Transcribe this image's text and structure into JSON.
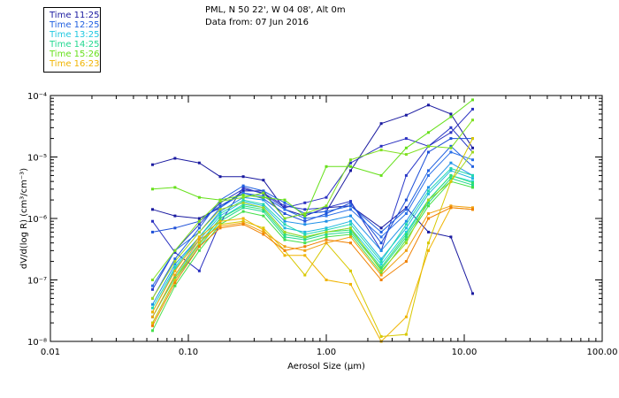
{
  "header": {
    "line1": "PML, N 50 22', W 04 08', Alt 0m",
    "line2": "Data from: 07 Jun 2016"
  },
  "legend": [
    {
      "label": "Time 11:25",
      "color": "#1a1aa0"
    },
    {
      "label": "Time 12:25",
      "color": "#1f5fe0"
    },
    {
      "label": "Time 13:25",
      "color": "#20c8e0"
    },
    {
      "label": "Time 14:25",
      "color": "#22d890"
    },
    {
      "label": "Time 15:26",
      "color": "#66e01a"
    },
    {
      "label": "Time 16:23",
      "color": "#f0b400"
    }
  ],
  "chart_data": {
    "type": "line",
    "xlabel": "Aerosol Size (μm)",
    "ylabel": "dV/d(log R) (cm³/cm⁻³)",
    "xscale": "log",
    "yscale": "log",
    "xlim": [
      0.01,
      100
    ],
    "ylim": [
      1e-08,
      0.0001
    ],
    "x_ticks": [
      "0.01",
      "0.10",
      "1.00",
      "10.00",
      "100.00"
    ],
    "y_ticks": [
      "10⁻⁸",
      "10⁻⁷",
      "10⁻⁶",
      "10⁻⁵",
      "10⁻⁴"
    ],
    "x": [
      0.055,
      0.08,
      0.12,
      0.17,
      0.25,
      0.35,
      0.5,
      0.7,
      1.0,
      1.5,
      2.5,
      3.8,
      5.5,
      8.0,
      11.5
    ],
    "series": [
      {
        "color": "#1a1aa0",
        "values": [
          7.5e-06,
          9.5e-06,
          8e-06,
          4.8e-06,
          4.8e-06,
          4.2e-06,
          1.4e-06,
          1.1e-06,
          1.5e-06,
          1.6e-06,
          7e-07,
          1.5e-06,
          6e-07,
          5e-07,
          6e-08
        ]
      },
      {
        "color": "#1a1aa0",
        "values": [
          1.4e-06,
          1.1e-06,
          1e-06,
          1.5e-06,
          2.8e-06,
          2.8e-06,
          1e-06,
          1.2e-06,
          1.3e-06,
          6e-06,
          3.5e-05,
          4.8e-05,
          7e-05,
          5e-05,
          1.4e-05
        ]
      },
      {
        "color": "#2a30c0",
        "values": [
          9e-07,
          2.8e-07,
          1.4e-07,
          8.5e-07,
          3.2e-06,
          2.5e-06,
          1.5e-06,
          1.8e-06,
          2.2e-06,
          8e-06,
          1.5e-05,
          2e-05,
          1.5e-05,
          2.5e-05,
          6e-05
        ]
      },
      {
        "color": "#1e50d8",
        "values": [
          6e-07,
          7e-07,
          9e-07,
          1.6e-06,
          2.6e-06,
          2.1e-06,
          1.2e-06,
          9e-07,
          1.2e-06,
          1.8e-06,
          4e-07,
          2e-06,
          1.2e-05,
          2e-05,
          2e-05
        ]
      },
      {
        "color": "#2a38c8",
        "values": [
          7e-08,
          3e-07,
          8e-07,
          1.8e-06,
          3e-06,
          2.6e-06,
          1.6e-06,
          1.4e-06,
          1.5e-06,
          1.9e-06,
          3e-07,
          5e-06,
          1.5e-05,
          3e-05,
          1.2e-05
        ]
      },
      {
        "color": "#2060e0",
        "values": [
          5e-08,
          2.2e-07,
          7e-07,
          2e-06,
          3.4e-06,
          2.8e-06,
          1.8e-06,
          1.2e-06,
          1.3e-06,
          1.6e-06,
          6e-07,
          1.4e-06,
          6e-06,
          1.5e-05,
          7e-06
        ]
      },
      {
        "color": "#2a70e8",
        "values": [
          8e-08,
          3e-07,
          6e-07,
          1.5e-06,
          2.6e-06,
          2.3e-06,
          1.4e-06,
          1e-06,
          1.1e-06,
          1.4e-06,
          5e-07,
          1.2e-06,
          5e-06,
          1.2e-05,
          9e-06
        ]
      },
      {
        "color": "#1e90e8",
        "values": [
          4e-08,
          1.8e-07,
          5e-07,
          1.3e-06,
          2.2e-06,
          2e-06,
          9e-07,
          8e-07,
          9e-07,
          1.1e-06,
          3e-07,
          9e-07,
          3.2e-06,
          8e-06,
          5e-06
        ]
      },
      {
        "color": "#20b8e0",
        "values": [
          3e-08,
          1.5e-07,
          4.5e-07,
          1.1e-06,
          1.9e-06,
          1.6e-06,
          7e-07,
          6e-07,
          7e-07,
          9e-07,
          2.2e-07,
          7e-07,
          2.5e-06,
          6e-06,
          4.5e-06
        ]
      },
      {
        "color": "#20d0e0",
        "values": [
          2.5e-08,
          1.2e-07,
          4e-07,
          1e-06,
          1.7e-06,
          1.5e-06,
          6e-07,
          5e-07,
          6e-07,
          7e-07,
          1.8e-07,
          6e-07,
          2e-06,
          5e-06,
          4e-06
        ]
      },
      {
        "color": "#22d8b0",
        "values": [
          3.5e-08,
          1.6e-07,
          5e-07,
          1.2e-06,
          2e-06,
          1.7e-06,
          8e-07,
          5.5e-07,
          6.5e-07,
          8e-07,
          2e-07,
          8e-07,
          2.8e-06,
          6.5e-06,
          5e-06
        ]
      },
      {
        "color": "#22d890",
        "values": [
          2e-08,
          1e-07,
          3.5e-07,
          9e-07,
          1.5e-06,
          1.3e-06,
          5e-07,
          4.5e-07,
          5.5e-07,
          6e-07,
          1.5e-07,
          5e-07,
          1.8e-06,
          4.5e-06,
          3.5e-06
        ]
      },
      {
        "color": "#30e070",
        "values": [
          2.5e-08,
          1.1e-07,
          3.8e-07,
          1e-06,
          1.6e-06,
          1.4e-06,
          5.5e-07,
          4.8e-07,
          6e-07,
          6.5e-07,
          1.6e-07,
          5.5e-07,
          2e-06,
          5e-06,
          3.8e-06
        ]
      },
      {
        "color": "#44e04a",
        "values": [
          1.5e-08,
          8e-08,
          3e-07,
          8e-07,
          1.3e-06,
          1.1e-06,
          4.5e-07,
          4e-07,
          5e-07,
          5.5e-07,
          1.3e-07,
          4.5e-07,
          1.6e-06,
          4e-06,
          3.2e-06
        ]
      },
      {
        "color": "#66e01a",
        "values": [
          3e-06,
          3.2e-06,
          2.2e-06,
          2e-06,
          2.4e-06,
          2.2e-06,
          2e-06,
          1.1e-06,
          7e-06,
          7e-06,
          5e-06,
          1.4e-05,
          2.5e-05,
          4.5e-05,
          8.5e-05
        ]
      },
      {
        "color": "#80e020",
        "values": [
          1e-07,
          3e-07,
          9e-07,
          1.9e-06,
          2.2e-06,
          2.6e-06,
          1e-06,
          1.2e-06,
          1.6e-06,
          9e-06,
          1.3e-05,
          1.1e-05,
          1.5e-05,
          1.4e-05,
          4e-05
        ]
      },
      {
        "color": "#a0d820",
        "values": [
          5e-08,
          2e-07,
          6e-07,
          1.4e-06,
          1.8e-06,
          1.5e-06,
          6e-07,
          5e-07,
          6e-07,
          7e-07,
          1.4e-07,
          4e-07,
          2e-06,
          4e-06,
          1.2e-05
        ]
      },
      {
        "color": "#d8c800",
        "values": [
          2e-08,
          1e-07,
          4e-07,
          8e-07,
          9e-07,
          7e-07,
          3e-07,
          1.2e-07,
          4e-07,
          1.4e-07,
          1.2e-08,
          1.3e-08,
          4e-07,
          4e-06,
          2e-05
        ]
      },
      {
        "color": "#f0b400",
        "values": [
          3e-08,
          1.4e-07,
          5e-07,
          9e-07,
          1e-06,
          6.5e-07,
          2.5e-07,
          2.5e-07,
          1e-07,
          8.5e-08,
          1e-08,
          2.5e-08,
          3e-07,
          1.5e-06,
          1.4e-06
        ]
      },
      {
        "color": "#f0a010",
        "values": [
          2.5e-08,
          1.2e-07,
          4.5e-07,
          7.5e-07,
          8.5e-07,
          6e-07,
          3.5e-07,
          3e-07,
          4e-07,
          5e-07,
          1.2e-07,
          3e-07,
          1.2e-06,
          1.6e-06,
          1.5e-06
        ]
      },
      {
        "color": "#f08000",
        "values": [
          1.8e-08,
          9e-08,
          3.5e-07,
          7e-07,
          8e-07,
          5.5e-07,
          3e-07,
          3.5e-07,
          4.5e-07,
          4e-07,
          1e-07,
          2e-07,
          1e-06,
          1.5e-06,
          1.4e-06
        ]
      }
    ]
  }
}
